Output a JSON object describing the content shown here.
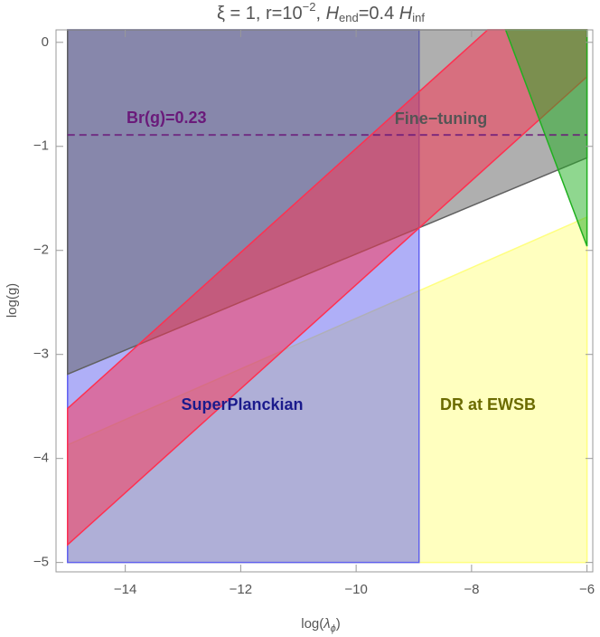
{
  "chart_data": {
    "type": "region",
    "title_parts": [
      "ξ = 1, r=10",
      "−2",
      ", ",
      "H",
      "end",
      "=0.4 ",
      "H",
      "inf"
    ],
    "x_label_parts": [
      "log(",
      "λ",
      "ϕ",
      ")"
    ],
    "y_label": "log(g)",
    "xlim": [
      -15.2,
      -5.9
    ],
    "ylim": [
      -5.09,
      0.12
    ],
    "xticks": [
      {
        "value": -14,
        "label": "−14"
      },
      {
        "value": -12,
        "label": "−12"
      },
      {
        "value": -10,
        "label": "−10"
      },
      {
        "value": -8,
        "label": "−8"
      },
      {
        "value": -6,
        "label": "−6"
      }
    ],
    "yticks": [
      0,
      {
        "value": -1,
        "label": "−1"
      },
      {
        "value": -2,
        "label": "−2"
      },
      {
        "value": -3,
        "label": "−3"
      },
      {
        "value": -4,
        "label": "−4"
      },
      {
        "value": -5,
        "label": "−5"
      }
    ],
    "regions": [
      {
        "name": "DR at EWSB",
        "color": "#ffff80",
        "label_color": "#6b6b00",
        "x": [
          -15,
          -6,
          -6,
          -15
        ],
        "y": [
          -5,
          -5,
          -1.68,
          -3.87
        ]
      },
      {
        "name": "SuperPlanckian",
        "color": "#6060f0",
        "label_color": "#1a1a8c",
        "x": [
          -15,
          -8.91,
          -8.91,
          -15
        ],
        "y": [
          -5,
          -5,
          0.12,
          0.12
        ]
      },
      {
        "name": "Fine−tuning",
        "color": "#606060",
        "label_color": "#555555",
        "x": [
          -15,
          -6,
          -6,
          -15
        ],
        "y": [
          -3.19,
          -1.11,
          0.12,
          0.12
        ]
      },
      {
        "color": "#ff3050",
        "x": [
          -15,
          -15,
          -7.72,
          -6,
          -6
        ],
        "y": [
          -4.83,
          -3.52,
          0.12,
          0.12,
          -0.33
        ]
      },
      {
        "color": "#20b020",
        "x": [
          -7.41,
          -6,
          -6
        ],
        "y": [
          0.12,
          0.12,
          -1.96
        ]
      }
    ],
    "hlines": [
      {
        "label": "Br(g)=0.23",
        "y": -0.89,
        "color": "#6a1a7a"
      }
    ]
  }
}
